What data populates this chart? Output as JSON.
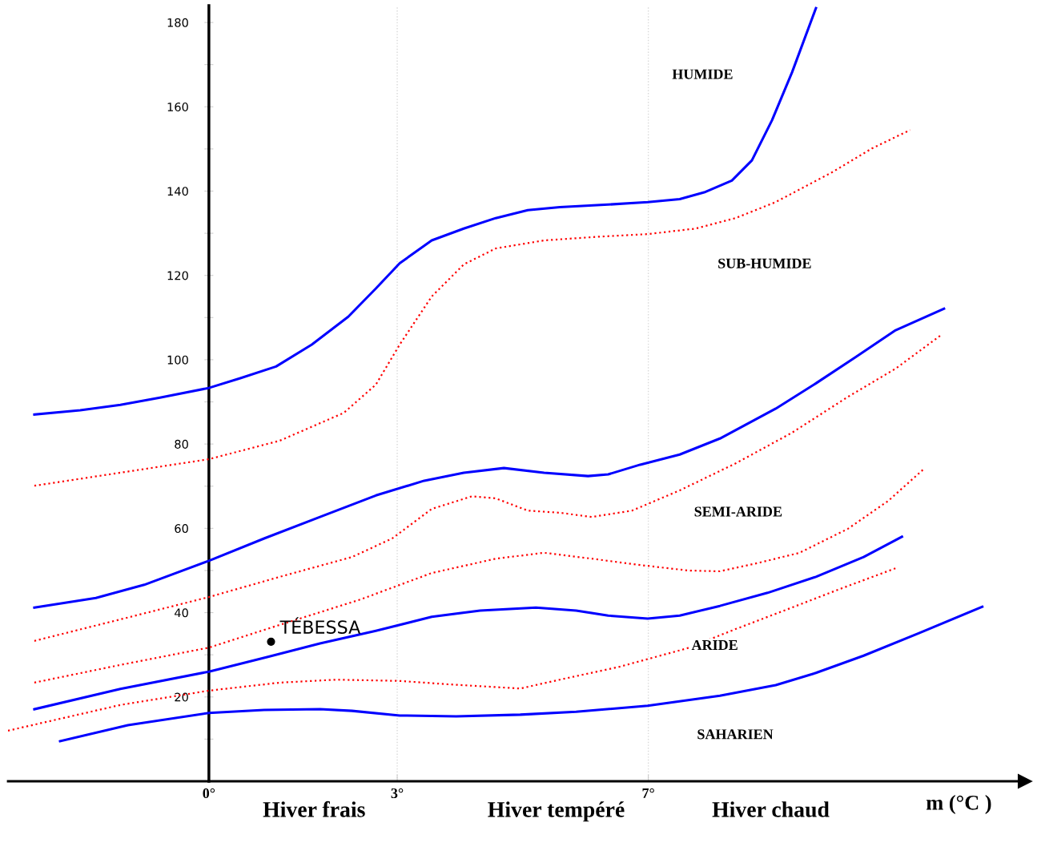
{
  "chart_data": {
    "type": "line",
    "xlabel": "m (°C )",
    "xlim": [
      -3.2,
      13.0
    ],
    "ylim": [
      0,
      184
    ],
    "xticks": [
      {
        "value": 0,
        "label": "0°"
      },
      {
        "value": 3,
        "label": "3°"
      },
      {
        "value": 7,
        "label": "7°"
      }
    ],
    "yticks": [
      {
        "value": 10,
        "label": null
      },
      20,
      {
        "value": 30,
        "label": null
      },
      40,
      {
        "value": 50,
        "label": null
      },
      60,
      {
        "value": 70,
        "label": null
      },
      80,
      {
        "value": 90,
        "label": null
      },
      100,
      {
        "value": 110,
        "label": null
      },
      120,
      {
        "value": 130,
        "label": null
      },
      140,
      {
        "value": 150,
        "label": null
      },
      160,
      {
        "value": 170,
        "label": null
      },
      180
    ],
    "grid": false,
    "legend": false,
    "marker": "none",
    "ref_lines": [
      {
        "axis": "x",
        "value": 3,
        "color": "#d8d8d8",
        "line_style": "dotted"
      },
      {
        "axis": "x",
        "value": 7,
        "color": "#d8d8d8",
        "line_style": "dotted"
      }
    ],
    "series": [
      {
        "color": "#0000ff",
        "line_style": "solid",
        "x": [
          -2.78,
          -2.05,
          -1.41,
          -0.78,
          0,
          0.5,
          1.07,
          1.64,
          2.22,
          2.66,
          3.04,
          3.55,
          4.06,
          4.57,
          5.08,
          5.59,
          6.36,
          6.99,
          7.5,
          7.89,
          8.33,
          8.65,
          8.97,
          9.29,
          9.67
        ],
        "values": [
          87.0,
          88.0,
          89.3,
          91.0,
          93.3,
          95.6,
          98.4,
          103.6,
          110.2,
          116.9,
          122.9,
          128.3,
          131.1,
          133.6,
          135.5,
          136.2,
          136.8,
          137.4,
          138.1,
          139.7,
          142.5,
          147.3,
          156.8,
          168.2,
          183.4
        ]
      },
      {
        "color": "#ff0000",
        "line_style": "dotted",
        "x": [
          -2.78,
          -1.41,
          0,
          1.13,
          2.15,
          2.66,
          3.04,
          3.55,
          4.06,
          4.57,
          5.34,
          6.23,
          6.99,
          7.75,
          8.39,
          9.03,
          9.92,
          10.56,
          11.17
        ],
        "values": [
          70.1,
          73.2,
          76.4,
          80.8,
          87.4,
          94.1,
          103.6,
          115.0,
          122.6,
          126.4,
          128.3,
          129.2,
          129.8,
          131.1,
          133.6,
          137.4,
          144.4,
          150.1,
          154.5
        ]
      },
      {
        "color": "#0000ff",
        "line_style": "solid",
        "x": [
          -2.78,
          -1.8,
          -1.03,
          0,
          0.88,
          1.77,
          2.66,
          3.43,
          4.06,
          4.7,
          5.34,
          6.04,
          6.36,
          6.87,
          7.5,
          8.14,
          9.03,
          9.67,
          10.31,
          10.94,
          11.71
        ],
        "values": [
          41.2,
          43.5,
          46.6,
          52.3,
          57.6,
          62.7,
          67.8,
          71.3,
          73.2,
          74.3,
          73.2,
          72.4,
          72.8,
          75.1,
          77.5,
          81.3,
          88.4,
          94.4,
          100.7,
          107.0,
          112.1
        ]
      },
      {
        "color": "#ff0000",
        "line_style": "dotted",
        "x": [
          -2.78,
          -1.41,
          0,
          1.13,
          2.28,
          2.92,
          3.55,
          4.19,
          4.57,
          5.08,
          5.59,
          6.1,
          6.74,
          7.5,
          8.39,
          9.29,
          10.18,
          10.94,
          11.66
        ],
        "values": [
          33.3,
          38.4,
          43.7,
          48.5,
          53.2,
          57.6,
          64.6,
          67.6,
          67.1,
          64.2,
          63.7,
          62.7,
          64.2,
          69.0,
          75.4,
          82.7,
          91.2,
          97.9,
          105.8
        ]
      },
      {
        "color": "#ff0000",
        "line_style": "dotted",
        "x": [
          -2.78,
          -1.41,
          0,
          1.13,
          2.41,
          3.55,
          4.57,
          5.34,
          6.1,
          6.87,
          7.63,
          8.14,
          8.78,
          9.41,
          10.18,
          10.82,
          11.39
        ],
        "values": [
          23.4,
          27.6,
          31.7,
          37.1,
          43.1,
          49.4,
          52.8,
          54.2,
          52.8,
          51.3,
          50.0,
          49.8,
          51.9,
          54.2,
          59.9,
          66.5,
          74.1
        ]
      },
      {
        "color": "#0000ff",
        "line_style": "solid",
        "x": [
          -2.78,
          -1.41,
          0,
          0.94,
          1.77,
          2.66,
          3.55,
          4.32,
          5.21,
          5.85,
          6.36,
          6.99,
          7.5,
          8.14,
          8.9,
          9.67,
          10.43,
          11.04
        ],
        "values": [
          17.1,
          21.9,
          26.0,
          29.5,
          32.7,
          35.7,
          39.0,
          40.5,
          41.2,
          40.5,
          39.3,
          38.6,
          39.3,
          41.6,
          44.7,
          48.5,
          53.2,
          58.0
        ]
      },
      {
        "color": "#ff0000",
        "line_style": "dotted",
        "x": [
          -3.2,
          -1.41,
          0,
          1.13,
          2.03,
          3.04,
          3.81,
          4.96,
          5.59,
          6.55,
          7.61,
          8.39,
          9.2,
          10.05,
          10.97
        ],
        "values": [
          12.0,
          18.1,
          21.5,
          23.4,
          24.1,
          23.8,
          23.0,
          22.0,
          24.1,
          27.2,
          31.5,
          36.1,
          40.7,
          45.6,
          50.7
        ]
      },
      {
        "color": "#0000ff",
        "line_style": "solid",
        "x": [
          -2.37,
          -1.29,
          0,
          0.88,
          1.77,
          2.28,
          3.04,
          3.94,
          4.96,
          5.85,
          6.99,
          8.14,
          9.03,
          9.67,
          10.43,
          11.32,
          12.32
        ],
        "values": [
          9.5,
          13.3,
          16.2,
          16.9,
          17.1,
          16.7,
          15.6,
          15.4,
          15.8,
          16.5,
          17.9,
          20.3,
          22.8,
          25.7,
          29.8,
          35.2,
          41.4
        ]
      },
      {
        "type": "scatter",
        "name": "TÉBESSA",
        "color": "#000000",
        "marker": "circle",
        "x": [
          0.99
        ],
        "values": [
          33.1
        ]
      }
    ],
    "annotations": [
      "HUMIDE",
      "SUB-HUMIDE",
      "SEMI-ARIDE",
      "ARIDE",
      "SAHARIEN",
      "Hiver frais",
      "Hiver tempéré",
      "Hiver chaud"
    ]
  }
}
